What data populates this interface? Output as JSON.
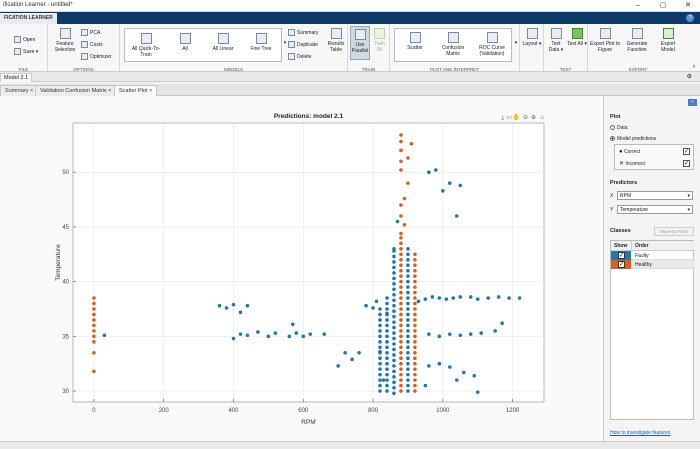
{
  "window": {
    "title": "ification Learner - untitled*",
    "minimize": "–",
    "maximize": "▢",
    "close": "✕"
  },
  "app_tab": "FICATION LEARNER",
  "ribbon": {
    "file": {
      "open": "Open",
      "save": "Save",
      "label": "FILE"
    },
    "options": {
      "feature_selection": "Feature Selection",
      "pca": "PCA",
      "costs": "Costs",
      "optimizer": "Optimizer",
      "label": "OPTIONS"
    },
    "models": {
      "items": [
        "All Quick-To-Train",
        "All",
        "All Linear",
        "Fine Tree"
      ],
      "label": "MODELS"
    },
    "train_actions": {
      "summary": "Summary",
      "duplicate": "Duplicate",
      "delete": "Delete",
      "results_table": "Results Table"
    },
    "train": {
      "use_parallel": "Use Parallel",
      "train_all": "Train All",
      "label": "TRAIN"
    },
    "plot": {
      "scatter": "Scatter",
      "confusion": "Confusion Matrix",
      "roc": "ROC Curve (Validation)",
      "label": "PLOT AND INTERPRET"
    },
    "layout": "Layout",
    "test": {
      "test_data": "Test Data",
      "test_all": "Test All",
      "label": "TEST"
    },
    "export": {
      "export_plot": "Export Plot to Figure",
      "generate_function": "Generate Function",
      "export_model": "Export Model",
      "label": "EXPORT"
    }
  },
  "doc_tab": "Model 2.1",
  "subtabs": [
    "Summary",
    "Validation Confusion Matrix",
    "Scatter Plot"
  ],
  "plot_panel": {
    "section": "Plot",
    "data": "Data",
    "model_predictions": "Model predictions",
    "correct": "Correct",
    "incorrect": "Incorrect",
    "predictors": "Predictors",
    "x_label": "X",
    "x_value": "RPM",
    "y_label": "Y",
    "y_value": "Temperature",
    "classes": "Classes",
    "move_to_front": "Move to Front",
    "show": "Show",
    "order": "Order",
    "class_rows": [
      {
        "name": "Faulty",
        "color": "#1f77b4"
      },
      {
        "name": "Healthy",
        "color": "#d95f1e"
      }
    ],
    "help_link": "How to investigate features"
  },
  "chart_data": {
    "type": "scatter",
    "title": "Predictions: model 2.1",
    "xlabel": "RPM",
    "ylabel": "Temperature",
    "xlim": [
      -60,
      1290
    ],
    "ylim": [
      29,
      54.5
    ],
    "xticks": [
      0,
      200,
      400,
      600,
      800,
      1000,
      1200
    ],
    "yticks": [
      30,
      35,
      40,
      45,
      50
    ],
    "series": [
      {
        "name": "Faulty",
        "color": "#1f77b4",
        "points": [
          [
            30,
            35.1
          ],
          [
            360,
            37.8
          ],
          [
            380,
            37.6
          ],
          [
            400,
            37.9
          ],
          [
            420,
            37.2
          ],
          [
            440,
            37.8
          ],
          [
            420,
            35.2
          ],
          [
            400,
            34.8
          ],
          [
            440,
            35.1
          ],
          [
            470,
            35.4
          ],
          [
            500,
            35.0
          ],
          [
            520,
            35.3
          ],
          [
            560,
            35.0
          ],
          [
            580,
            35.3
          ],
          [
            600,
            35.0
          ],
          [
            620,
            35.2
          ],
          [
            660,
            35.2
          ],
          [
            570,
            36.1
          ],
          [
            700,
            32.3
          ],
          [
            720,
            33.5
          ],
          [
            740,
            32.9
          ],
          [
            760,
            33.5
          ],
          [
            780,
            37.8
          ],
          [
            800,
            37.6
          ],
          [
            810,
            38.2
          ],
          [
            840,
            37.1
          ],
          [
            820,
            33.6
          ],
          [
            830,
            31.0
          ],
          [
            860,
            43.0
          ],
          [
            870,
            45.5
          ],
          [
            930,
            38.2
          ],
          [
            950,
            38.4
          ],
          [
            970,
            38.6
          ],
          [
            990,
            38.5
          ],
          [
            1010,
            38.4
          ],
          [
            1030,
            38.5
          ],
          [
            1050,
            38.6
          ],
          [
            1080,
            38.6
          ],
          [
            1100,
            38.4
          ],
          [
            1130,
            38.5
          ],
          [
            1160,
            38.6
          ],
          [
            1190,
            38.5
          ],
          [
            1220,
            38.5
          ],
          [
            960,
            35.2
          ],
          [
            990,
            35.0
          ],
          [
            1020,
            35.2
          ],
          [
            1050,
            35.1
          ],
          [
            1080,
            35.2
          ],
          [
            1110,
            35.3
          ],
          [
            960,
            32.3
          ],
          [
            990,
            32.5
          ],
          [
            1020,
            32.2
          ],
          [
            1040,
            31.0
          ],
          [
            1060,
            31.7
          ],
          [
            1090,
            31.4
          ],
          [
            960,
            50.0
          ],
          [
            980,
            50.2
          ],
          [
            1000,
            48.3
          ],
          [
            1020,
            49.0
          ],
          [
            1040,
            46.0
          ],
          [
            1050,
            48.8
          ],
          [
            950,
            30.5
          ],
          [
            1100,
            29.9
          ],
          [
            1150,
            35.5
          ],
          [
            1170,
            36.2
          ]
        ]
      },
      {
        "name": "Healthy",
        "color": "#d95f1e",
        "points": [
          [
            0,
            38.5
          ],
          [
            0,
            38.0
          ],
          [
            0,
            37.5
          ],
          [
            0,
            37.0
          ],
          [
            0,
            36.5
          ],
          [
            0,
            36.0
          ],
          [
            0,
            35.5
          ],
          [
            0,
            35.0
          ],
          [
            0,
            34.5
          ],
          [
            0,
            33.5
          ],
          [
            0,
            31.8
          ],
          [
            880,
            53.4
          ],
          [
            880,
            52.8
          ],
          [
            880,
            52.0
          ],
          [
            880,
            51.0
          ],
          [
            880,
            50.2
          ],
          [
            900,
            51.3
          ],
          [
            910,
            52.6
          ],
          [
            900,
            49.0
          ],
          [
            890,
            47.6
          ],
          [
            880,
            47.0
          ],
          [
            880,
            46.0
          ],
          [
            890,
            45.2
          ],
          [
            880,
            44.4
          ]
        ]
      }
    ],
    "columns": [
      {
        "x": 820,
        "from": 30.0,
        "to": 37.5,
        "step": 0.5,
        "series": 0
      },
      {
        "x": 840,
        "from": 30.0,
        "to": 38.5,
        "step": 0.5,
        "series": 0
      },
      {
        "x": 860,
        "from": 29.8,
        "to": 42.8,
        "step": 0.5,
        "series": 0
      },
      {
        "x": 880,
        "from": 30.0,
        "to": 44.0,
        "step": 0.5,
        "series": 1
      },
      {
        "x": 900,
        "from": 30.0,
        "to": 43.0,
        "step": 0.5,
        "series": 0
      },
      {
        "x": 920,
        "from": 30.0,
        "to": 42.5,
        "step": 0.5,
        "series": 1
      }
    ],
    "grid": true
  }
}
